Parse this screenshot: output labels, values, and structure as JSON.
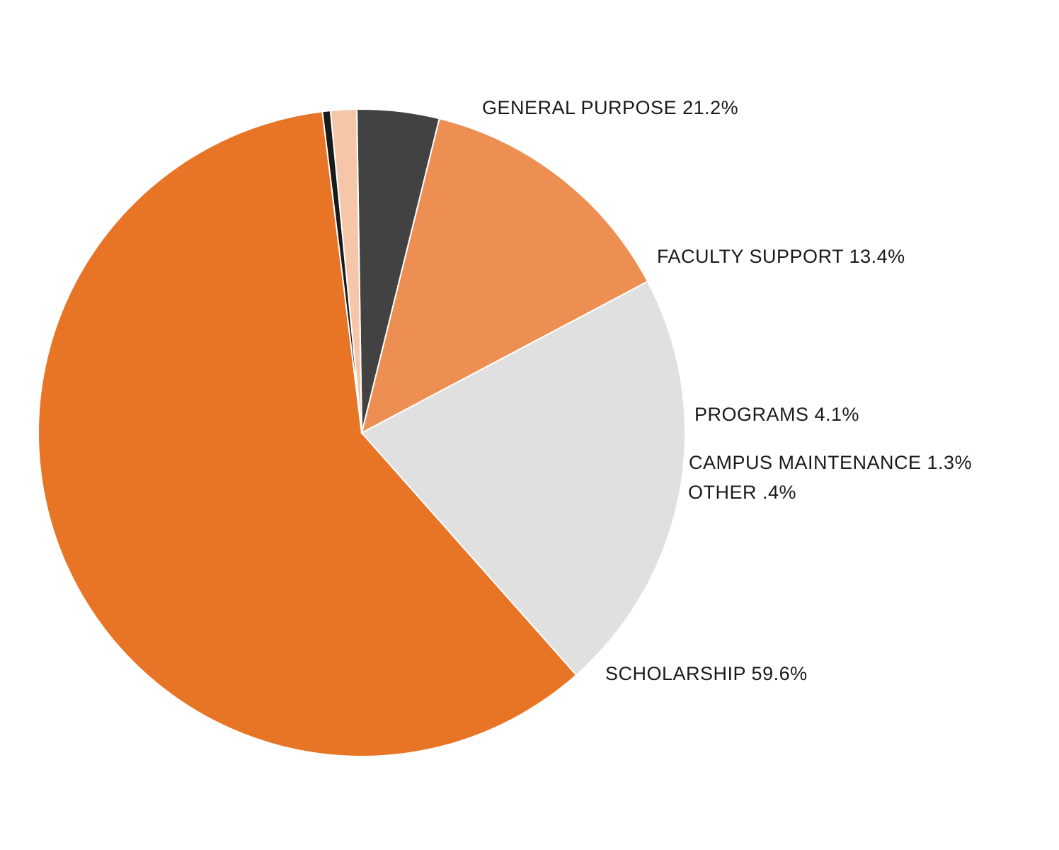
{
  "chart_data": {
    "type": "pie",
    "categories": [
      "SCHOLARSHIP",
      "GENERAL PURPOSE",
      "FACULTY SUPPORT",
      "PROGRAMS",
      "CAMPUS MAINTENANCE",
      "OTHER"
    ],
    "values": [
      59.6,
      21.2,
      13.4,
      4.1,
      1.3,
      0.4
    ],
    "labels": [
      "SCHOLARSHIP 59.6%",
      "GENERAL PURPOSE 21.2%",
      "FACULTY SUPPORT 13.4%",
      "PROGRAMS 4.1%",
      "CAMPUS MAINTENANCE 1.3%",
      "OTHER .4%"
    ],
    "colors": [
      "#e87425",
      "#e0e0e0",
      "#ed8f52",
      "#424242",
      "#f5c6a8",
      "#1a1a1a"
    ],
    "start_angle_deg": 97,
    "direction": "counterclockwise",
    "legend": "none"
  }
}
